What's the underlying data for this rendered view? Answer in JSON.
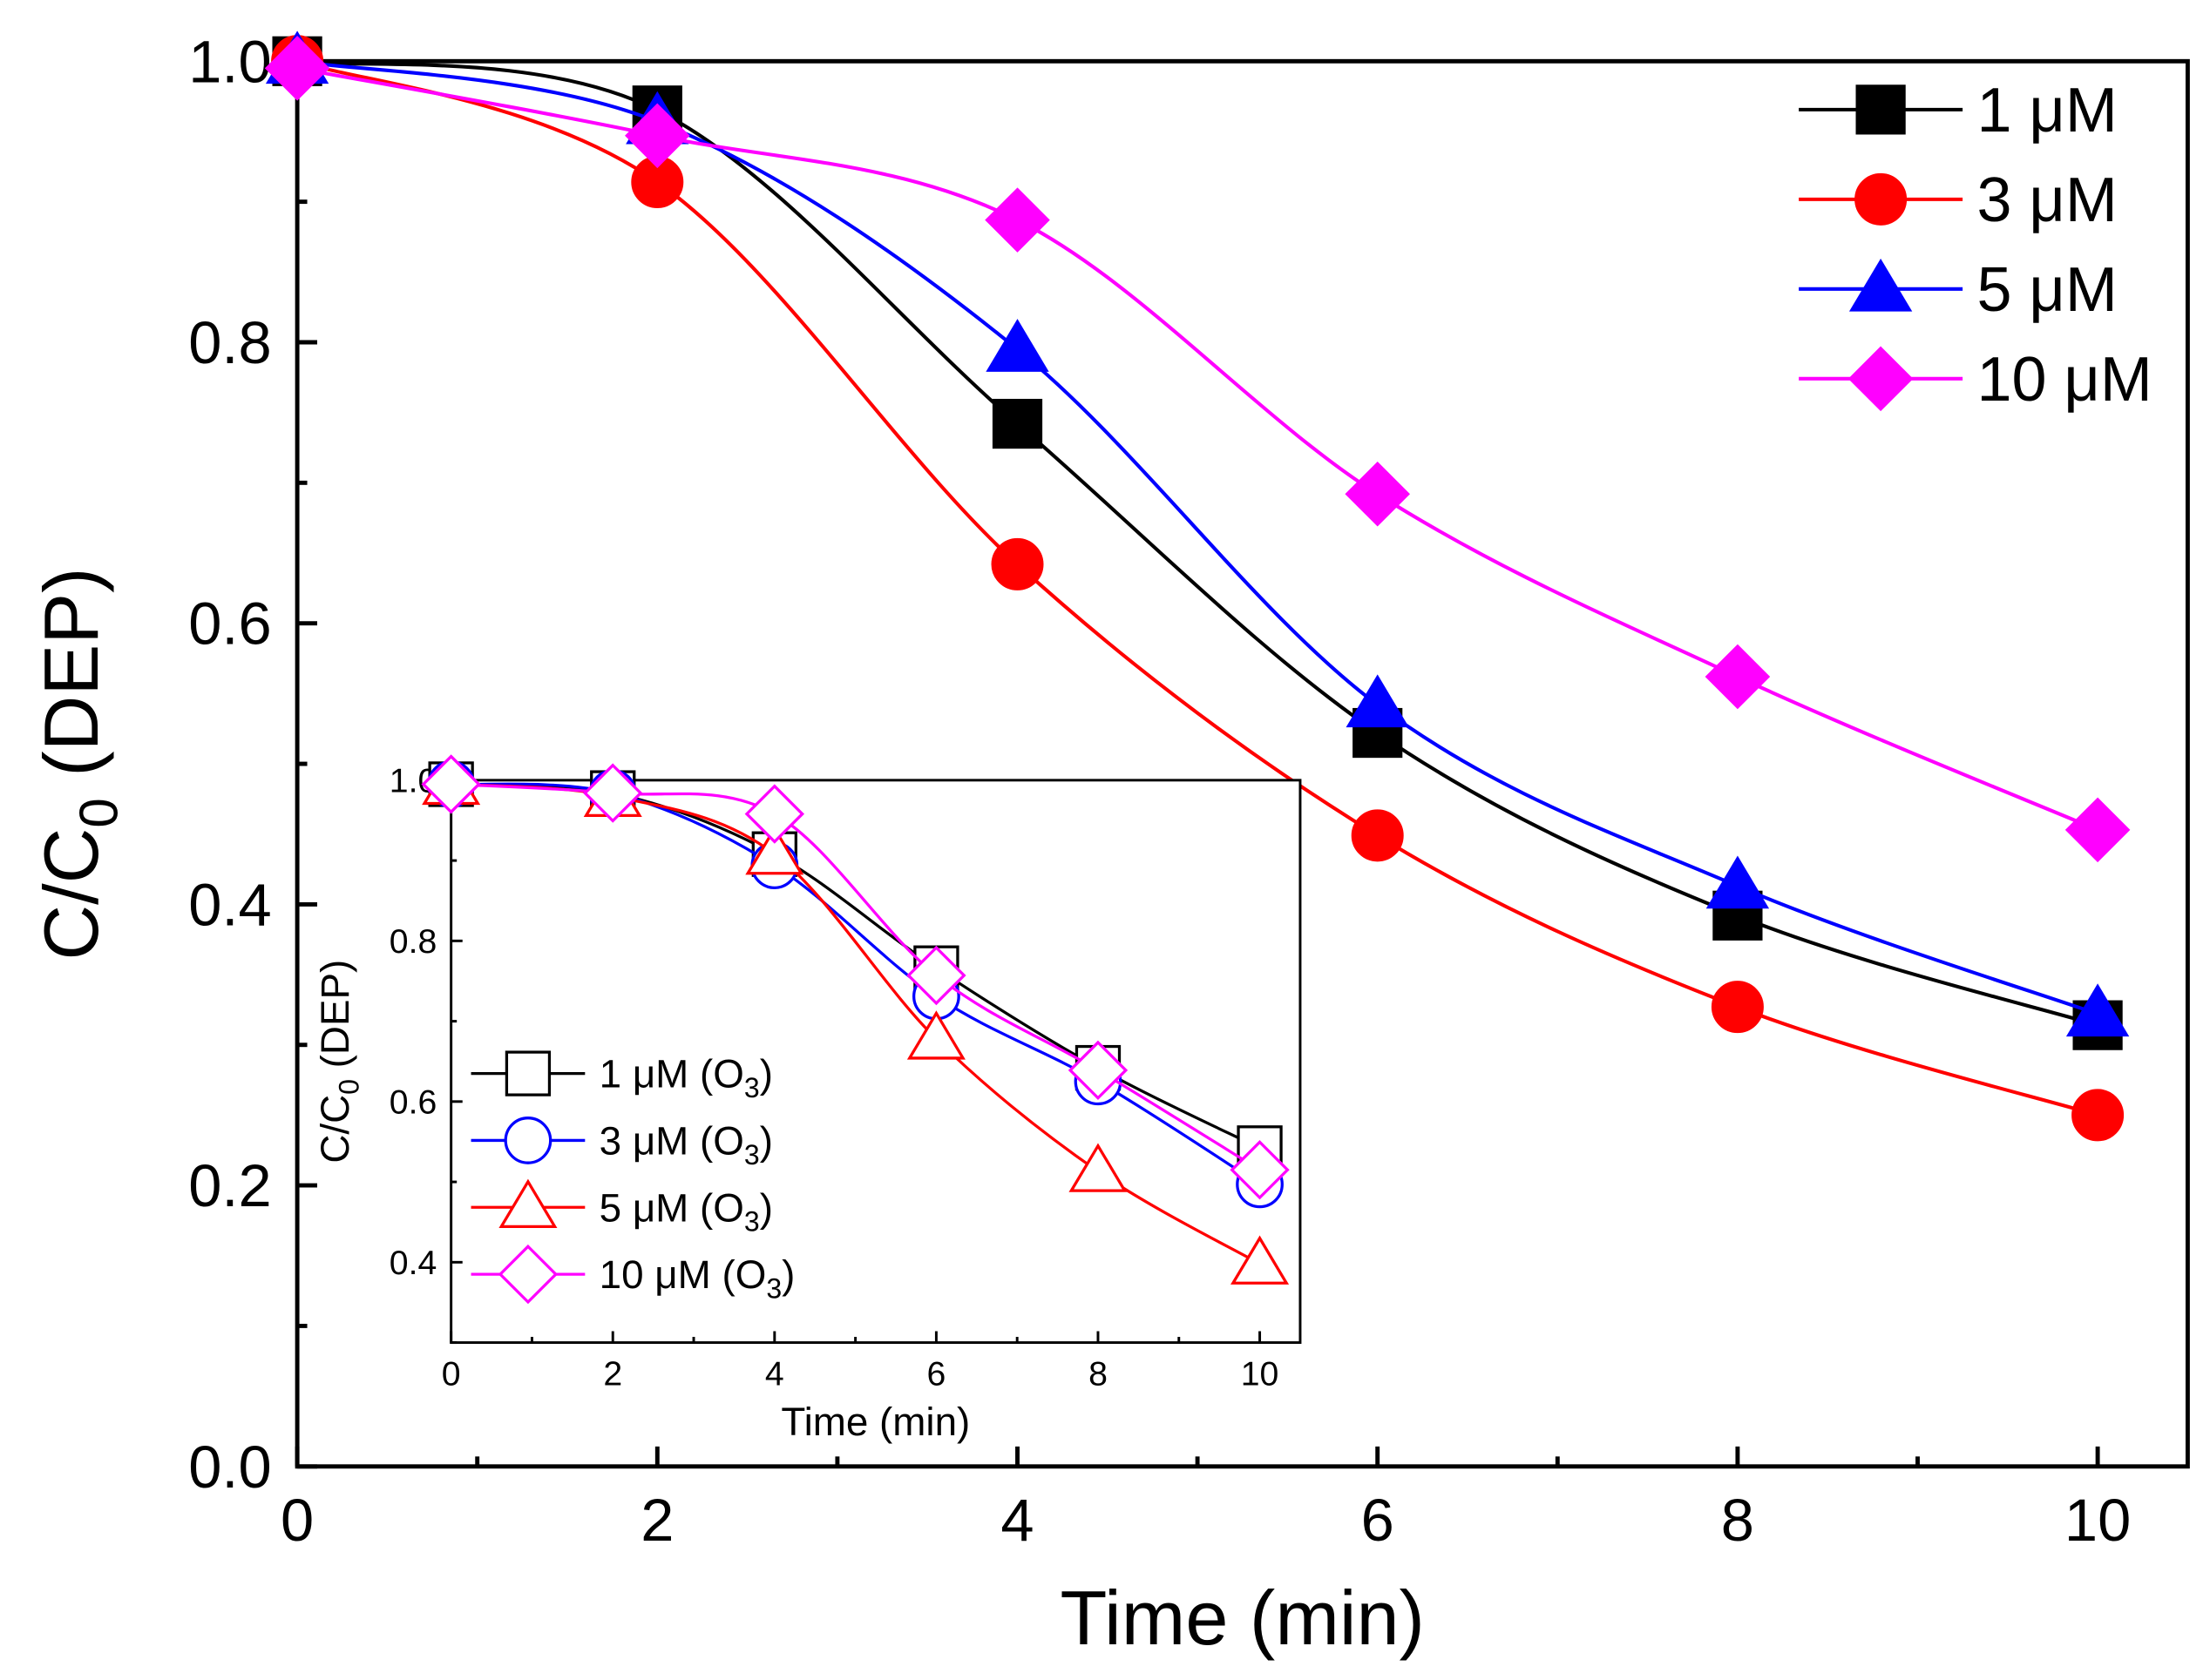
{
  "chart_data": [
    {
      "type": "line",
      "panel": "main",
      "xlabel": "Time (min)",
      "ylabel_main": "C/C",
      "ylabel_sub": "0",
      "ylabel_tail": " (DEP)",
      "xlim": [
        0,
        10.5
      ],
      "ylim": [
        0,
        1.0
      ],
      "xticks": [
        0,
        2,
        4,
        6,
        8,
        10
      ],
      "xtick_labels": [
        "0",
        "2",
        "4",
        "6",
        "8",
        "10"
      ],
      "yticks": [
        0.0,
        0.2,
        0.4,
        0.6,
        0.8,
        1.0
      ],
      "ytick_labels": [
        "0.0",
        "0.2",
        "0.4",
        "0.6",
        "0.8",
        "1.0"
      ],
      "grid": false,
      "legend_position": "top-right",
      "x": [
        0,
        2,
        4,
        6,
        8,
        10
      ],
      "series": [
        {
          "name": "1 μM",
          "color": "#000000",
          "marker": "square",
          "filled": true,
          "values": [
            1.0,
            0.965,
            0.742,
            0.522,
            0.392,
            0.314
          ]
        },
        {
          "name": "3 μM",
          "color": "#ff0000",
          "marker": "circle",
          "filled": true,
          "values": [
            1.0,
            0.914,
            0.642,
            0.449,
            0.327,
            0.25
          ]
        },
        {
          "name": "5 μM",
          "color": "#0000ff",
          "marker": "triangle",
          "filled": true,
          "values": [
            1.0,
            0.957,
            0.795,
            0.542,
            0.413,
            0.322
          ]
        },
        {
          "name": "10 μM",
          "color": "#ff00ff",
          "marker": "diamond",
          "filled": true,
          "values": [
            0.995,
            0.947,
            0.887,
            0.692,
            0.562,
            0.453
          ]
        }
      ]
    },
    {
      "type": "line",
      "panel": "inset",
      "xlabel": "Time (min)",
      "ylabel_main": "C/C",
      "ylabel_sub": "0",
      "ylabel_tail": " (DEP)",
      "xlim": [
        0,
        10.5
      ],
      "ylim": [
        0.3,
        1.0
      ],
      "xticks": [
        0,
        2,
        4,
        6,
        8,
        10
      ],
      "xtick_labels": [
        "0",
        "2",
        "4",
        "6",
        "8",
        "10"
      ],
      "yticks": [
        0.4,
        0.6,
        0.8,
        1.0
      ],
      "ytick_labels": [
        "0.4",
        "0.6",
        "0.8",
        "1.0"
      ],
      "grid": false,
      "legend_position": "bottom-left",
      "x": [
        0,
        2,
        4,
        6,
        8,
        10
      ],
      "series": [
        {
          "name": "1 μM (O",
          "sub": "3",
          "tail": ")",
          "color": "#000000",
          "marker": "square",
          "filled": false,
          "values": [
            0.995,
            0.984,
            0.908,
            0.766,
            0.642,
            0.542
          ]
        },
        {
          "name": "3 μM (O",
          "sub": "3",
          "tail": ")",
          "color": "#0000ff",
          "marker": "circle",
          "filled": false,
          "values": [
            0.995,
            0.984,
            0.894,
            0.731,
            0.625,
            0.497
          ]
        },
        {
          "name": "5 μM (O",
          "sub": "3",
          "tail": ")",
          "color": "#ff0000",
          "marker": "triangle",
          "filled": false,
          "values": [
            0.995,
            0.98,
            0.908,
            0.678,
            0.513,
            0.398
          ]
        },
        {
          "name": "10 μM (O",
          "sub": "3",
          "tail": ")",
          "color": "#ff00ff",
          "marker": "diamond",
          "filled": false,
          "values": [
            0.995,
            0.984,
            0.958,
            0.757,
            0.639,
            0.515
          ]
        }
      ]
    }
  ]
}
